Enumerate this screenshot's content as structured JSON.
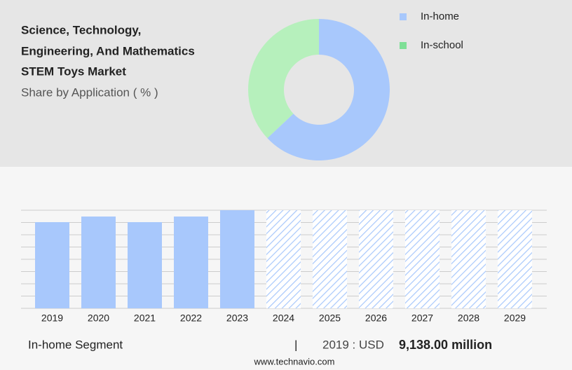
{
  "chart_data": [
    {
      "type": "pie",
      "title": [
        "Science, Technology,",
        "Engineering, And Mathematics",
        "STEM Toys Market"
      ],
      "subtitle": "Share by Application ( % )",
      "categories": [
        "In-home",
        "In-school"
      ],
      "values": [
        63,
        37
      ],
      "colors": [
        "#a8c8fc",
        "#b6f0bc"
      ],
      "legend_colors": [
        "#a8c8fc",
        "#7edf96"
      ],
      "donut": true,
      "legend": "top-right"
    },
    {
      "type": "bar",
      "categories": [
        "2019",
        "2020",
        "2021",
        "2022",
        "2023",
        "2024",
        "2025",
        "2026",
        "2027",
        "2028",
        "2029"
      ],
      "values": [
        9138,
        9733,
        9138,
        9733,
        10401,
        null,
        null,
        null,
        null,
        null,
        null
      ],
      "color": "#a8c8fc",
      "forecast_color": "#a8c8fc",
      "ylim": [
        0,
        10400
      ],
      "yticks": [
        0,
        1300,
        2600,
        3900,
        5200,
        6500,
        7800,
        9100,
        10400
      ],
      "grid": true
    }
  ],
  "footer": {
    "segment": "In-home Segment",
    "separator": "|",
    "year_label": "2019 : USD",
    "value_label": "9,138.00 million"
  },
  "source": "www.technavio.com"
}
